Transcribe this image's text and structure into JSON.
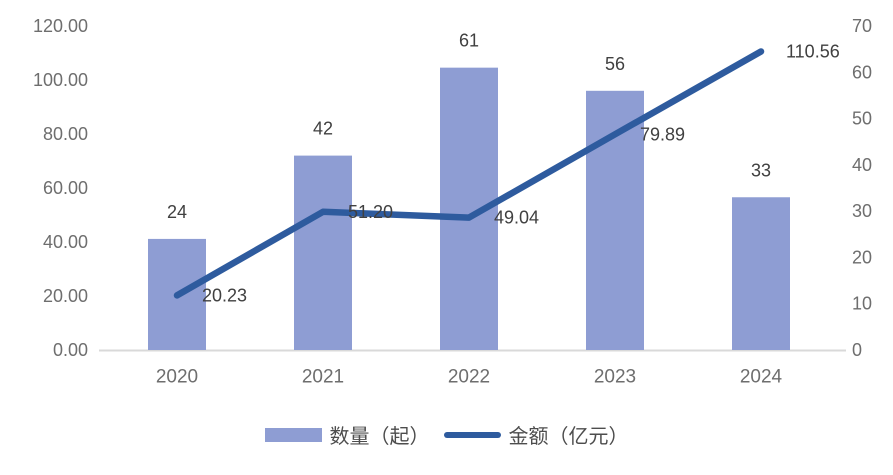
{
  "chart_data": {
    "type": "combo_bar_line",
    "title": "",
    "categories": [
      "2020",
      "2021",
      "2022",
      "2023",
      "2024"
    ],
    "series": [
      {
        "name": "数量（起）",
        "type": "bar",
        "axis": "right",
        "values": [
          24,
          42,
          61,
          56,
          33
        ],
        "labels": [
          "24",
          "42",
          "61",
          "56",
          "33"
        ],
        "color": "#8E9DD3"
      },
      {
        "name": "金额（亿元）",
        "type": "line",
        "axis": "left",
        "values": [
          20.23,
          51.2,
          49.04,
          79.89,
          110.56
        ],
        "labels": [
          "20.23",
          "51.20",
          "49.04",
          "79.89",
          "110.56"
        ],
        "color": "#2E5B9E"
      }
    ],
    "left_axis": {
      "range": [
        0,
        120
      ],
      "tick_step": 20,
      "ticks": [
        "0.00",
        "20.00",
        "40.00",
        "60.00",
        "80.00",
        "100.00",
        "120.00"
      ]
    },
    "right_axis": {
      "range": [
        0,
        70
      ],
      "tick_step": 10,
      "ticks": [
        "0",
        "10",
        "20",
        "30",
        "40",
        "50",
        "60",
        "70"
      ]
    },
    "grid": false,
    "legend": {
      "position": "bottom",
      "items": [
        {
          "label": "数量（起）",
          "swatch": "bar"
        },
        {
          "label": "金额（亿元）",
          "swatch": "line"
        }
      ]
    },
    "colors": {
      "bar": "#8E9DD3",
      "line": "#2E5B9E",
      "axis_line": "#D9D9D9",
      "tick_text": "#6E6E6E",
      "data_label": "#404040",
      "background": "#FFFFFF"
    }
  }
}
